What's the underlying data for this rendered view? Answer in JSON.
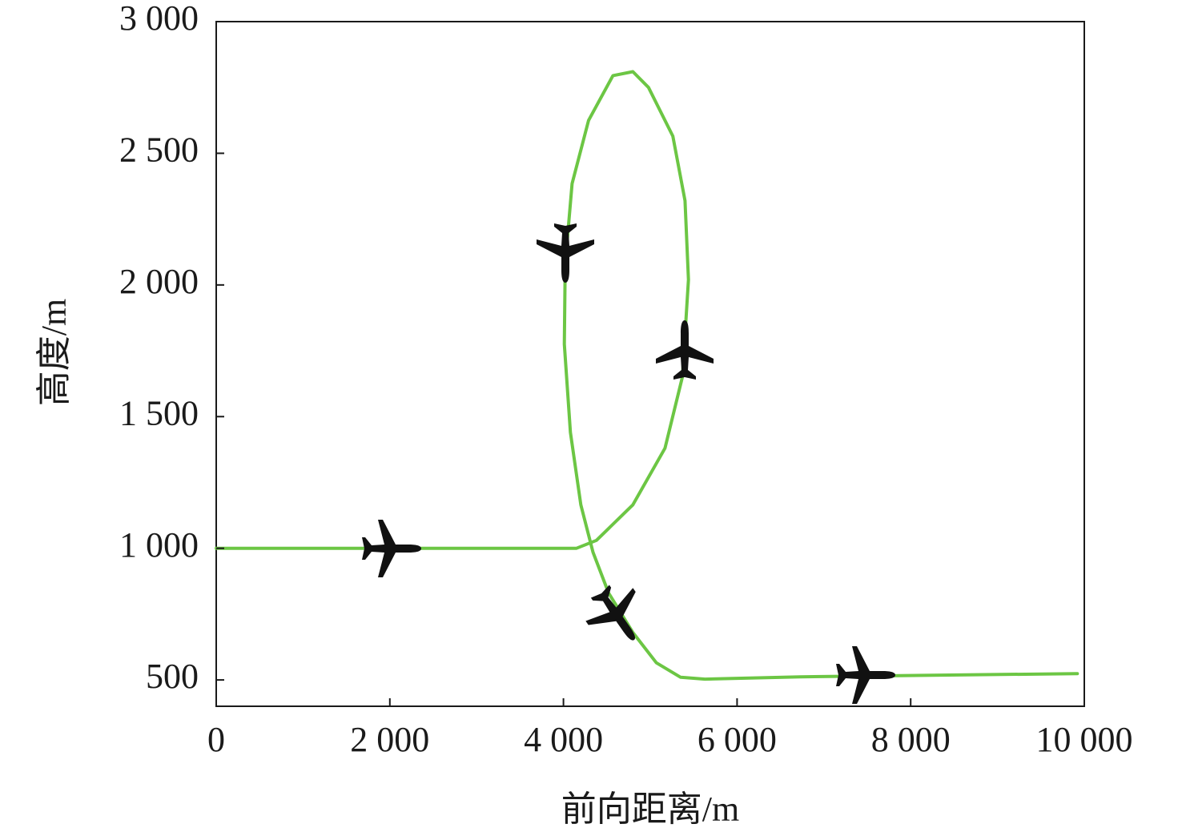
{
  "chart_data": {
    "type": "line",
    "x_label": "前向距离/m",
    "y_label": "高度/m",
    "xlim": [
      0,
      10000
    ],
    "ylim": [
      400,
      3000
    ],
    "xticks": [
      0,
      {
        "value": 2000,
        "label": "2 000"
      },
      {
        "value": 4000,
        "label": "4 000"
      },
      {
        "value": 6000,
        "label": "6 000"
      },
      {
        "value": 8000,
        "label": "8 000"
      },
      {
        "value": 10000,
        "label": "10 000"
      }
    ],
    "yticks": [
      500,
      {
        "value": 1000,
        "label": "1 000"
      },
      {
        "value": 1500,
        "label": "1 500"
      },
      {
        "value": 2000,
        "label": "2 000"
      },
      {
        "value": 2500,
        "label": "2 500"
      },
      {
        "value": 3000,
        "label": "3 000"
      }
    ],
    "grid": false,
    "series": [
      {
        "color": "#6cc644",
        "x": [
          0,
          4150,
          4380,
          4800,
          5170,
          5370,
          5440,
          5400,
          5260,
          4980,
          4800,
          4570,
          4290,
          4100,
          4020,
          4010,
          4080,
          4200,
          4340,
          4520,
          4800,
          5070,
          5350,
          5630,
          6730,
          9920
        ],
        "values": [
          1000,
          1000,
          1030,
          1165,
          1380,
          1650,
          2020,
          2320,
          2565,
          2750,
          2810,
          2795,
          2625,
          2385,
          2080,
          1775,
          1440,
          1165,
          985,
          830,
          680,
          565,
          510,
          503,
          512,
          524
        ]
      }
    ]
  }
}
